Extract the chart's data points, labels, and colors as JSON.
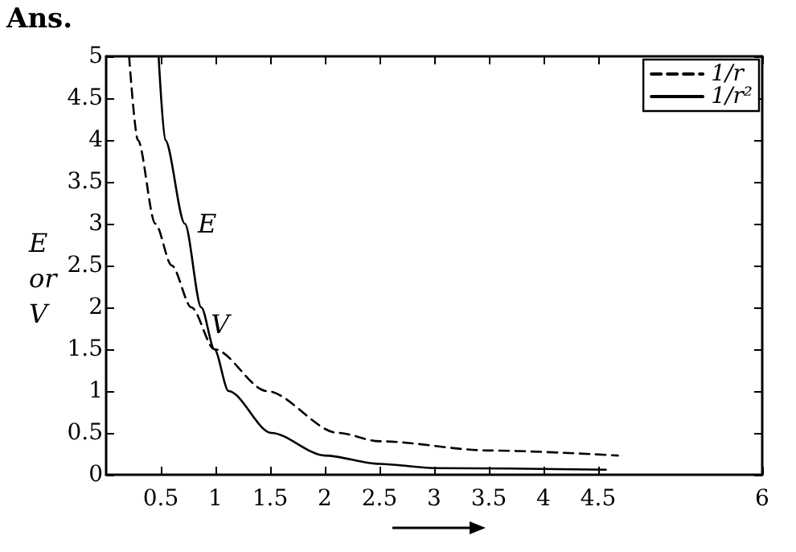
{
  "chart_data": {
    "type": "line",
    "ylabel": "E or V",
    "annotations": [
      "Ans.",
      {
        "text": "E",
        "x": 0.72,
        "y": 3
      },
      {
        "text": "V",
        "x": 0.84,
        "y": 1.8
      }
    ],
    "series": [
      {
        "name": "1/r",
        "color": "#000000",
        "line_style": "dashed",
        "x": [
          0.21,
          0.29,
          0.45,
          0.6,
          0.78,
          0.99,
          1.47,
          2.12,
          2.5,
          3.5,
          4.68
        ],
        "values": [
          5,
          4,
          3,
          2.5,
          2,
          1.5,
          1,
          0.5,
          0.4,
          0.29,
          0.23
        ]
      },
      {
        "name": "1/r²",
        "color": "#000000",
        "line_style": "solid",
        "x": [
          0.48,
          0.54,
          0.72,
          0.87,
          0.99,
          1.12,
          1.51,
          2,
          2.5,
          3,
          4.57
        ],
        "values": [
          5,
          4,
          3,
          2,
          1.5,
          1,
          0.5,
          0.23,
          0.13,
          0.08,
          0.06
        ]
      }
    ],
    "xlim": [
      0,
      6
    ],
    "xticks": [
      0.5,
      1,
      1.5,
      2,
      2.5,
      3,
      3.5,
      4,
      4.5,
      6
    ],
    "ylim": [
      0,
      5
    ],
    "yticks": [
      0,
      0.5,
      1,
      1.5,
      2,
      2.5,
      3,
      3.5,
      4,
      4.5,
      5
    ],
    "marker": "none",
    "legend": "top right",
    "grid": false
  }
}
